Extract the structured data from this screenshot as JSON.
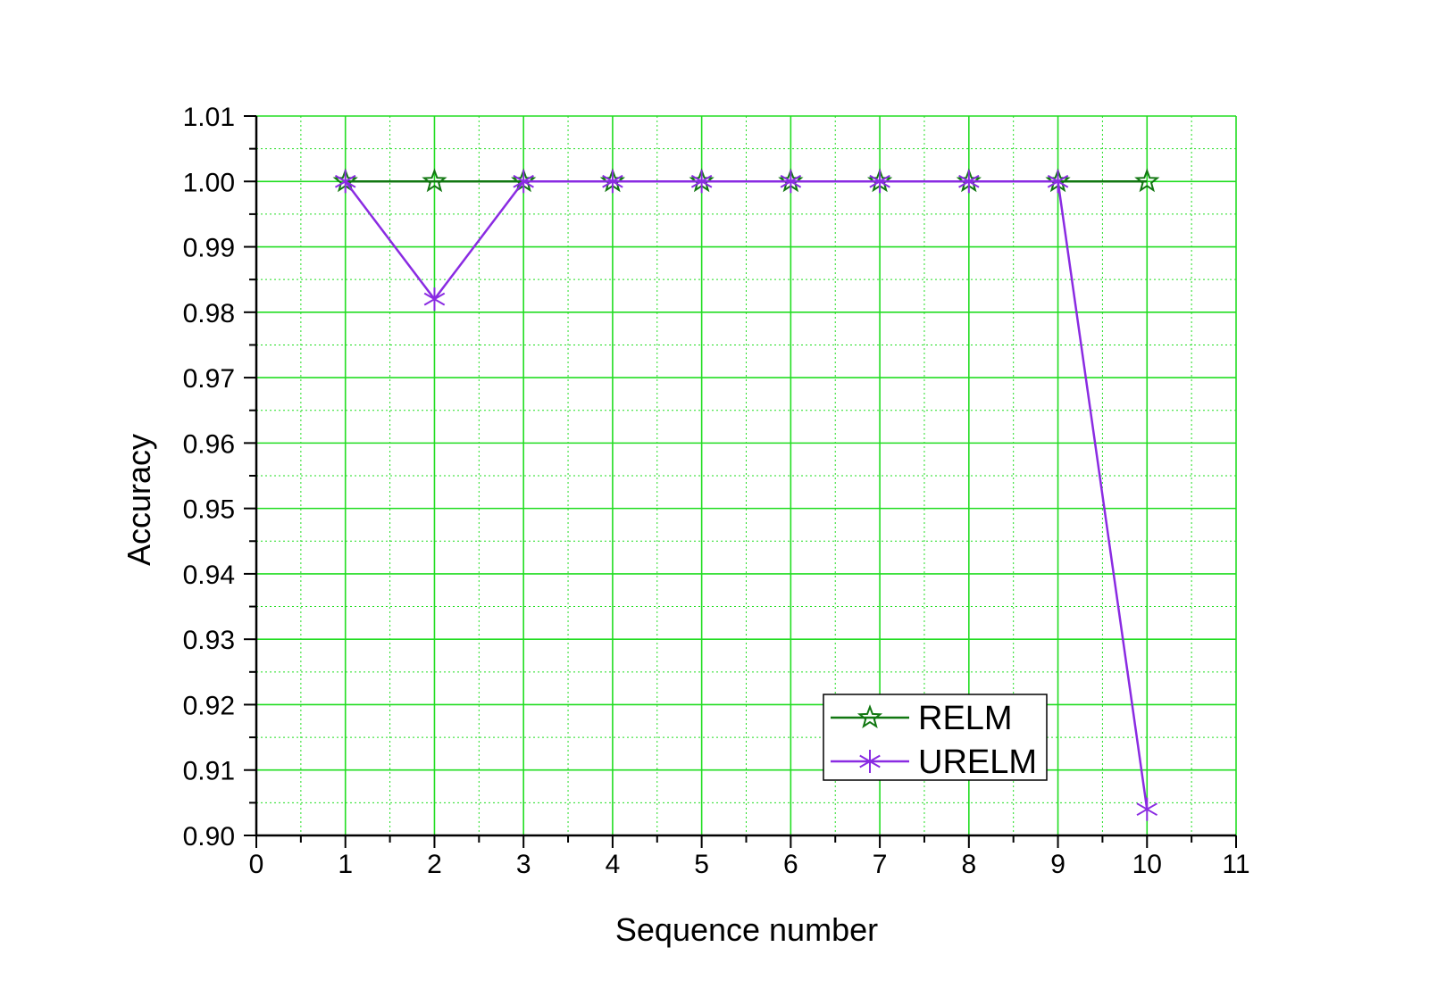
{
  "chart_data": {
    "type": "line",
    "xlabel": "Sequence number",
    "ylabel": "Accuracy",
    "xlim": [
      0,
      11
    ],
    "ylim": [
      0.9,
      1.01
    ],
    "x_ticks": [
      0,
      1,
      2,
      3,
      4,
      5,
      6,
      7,
      8,
      9,
      10,
      11
    ],
    "y_ticks": [
      0.9,
      0.91,
      0.92,
      0.93,
      0.94,
      0.95,
      0.96,
      0.97,
      0.98,
      0.99,
      1.0,
      1.01
    ],
    "x_tick_labels": [
      "0",
      "1",
      "2",
      "3",
      "4",
      "5",
      "6",
      "7",
      "8",
      "9",
      "10",
      "11"
    ],
    "y_tick_labels": [
      "0.90",
      "0.91",
      "0.92",
      "0.93",
      "0.94",
      "0.95",
      "0.96",
      "0.97",
      "0.98",
      "0.99",
      "1.00",
      "1.01"
    ],
    "grid": true,
    "grid_color": "#22dd22",
    "legend_position": "bottom-right",
    "x": [
      1,
      2,
      3,
      4,
      5,
      6,
      7,
      8,
      9,
      10
    ],
    "series": [
      {
        "name": "RELM",
        "color": "#117711",
        "marker": "star",
        "values": [
          1.0,
          1.0,
          1.0,
          1.0,
          1.0,
          1.0,
          1.0,
          1.0,
          1.0,
          1.0
        ]
      },
      {
        "name": "URELM",
        "color": "#8a2be2",
        "marker": "asterisk",
        "values": [
          1.0,
          0.982,
          1.0,
          1.0,
          1.0,
          1.0,
          1.0,
          1.0,
          1.0,
          0.904
        ]
      }
    ]
  }
}
